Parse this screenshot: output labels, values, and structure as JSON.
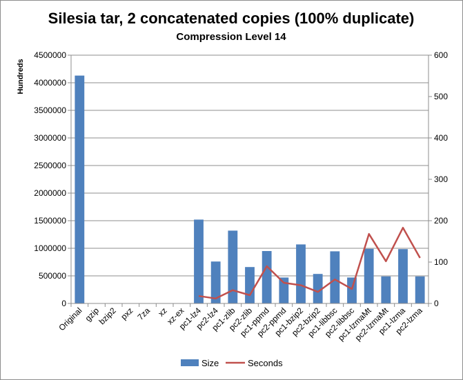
{
  "chart_data": {
    "type": "bar",
    "title": "Silesia tar, 2 concatenated copies (100% duplicate)",
    "subtitle": "Compression Level 14",
    "ylabel": "Hundreds",
    "y2label": "",
    "categories": [
      "Original",
      "gzip",
      "bzip2",
      "pxz",
      "7za",
      "xz",
      "xz-ex",
      "pc1-lz4",
      "pc2-lz4",
      "pc1-zlib",
      "pc2-zlib",
      "pc1-ppmd",
      "pc2-ppmd",
      "pc1-bzip2",
      "pc2-bzip2",
      "pc1-libbsc",
      "pc2-libbsc",
      "pc1-lzmaMt",
      "pc2-lzmaMt",
      "pc1-lzma",
      "pc2-lzma"
    ],
    "series": [
      {
        "name": "Size",
        "type": "bar",
        "axis": "left",
        "color": "#4f81bd",
        "values": [
          4130000,
          null,
          null,
          null,
          null,
          null,
          null,
          1520000,
          760000,
          1320000,
          660000,
          950000,
          470000,
          1070000,
          535000,
          945000,
          470000,
          990000,
          490000,
          985000,
          490000
        ]
      },
      {
        "name": "Seconds",
        "type": "line",
        "axis": "right",
        "color": "#c0504d",
        "values": [
          null,
          null,
          null,
          null,
          null,
          null,
          null,
          18,
          12,
          32,
          20,
          90,
          50,
          44,
          28,
          58,
          35,
          168,
          102,
          183,
          110
        ]
      }
    ],
    "ylim": [
      0,
      4500000
    ],
    "y2lim": [
      0,
      600
    ],
    "yticks": [
      "0",
      "500000",
      "1000000",
      "1500000",
      "2000000",
      "2500000",
      "3000000",
      "3500000",
      "4000000",
      "4500000"
    ],
    "y2ticks": [
      "0",
      "100",
      "200",
      "300",
      "400",
      "500",
      "600"
    ],
    "grid": true,
    "legend_position": "bottom"
  }
}
